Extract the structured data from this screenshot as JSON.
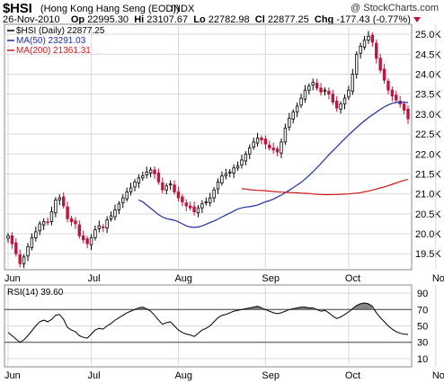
{
  "header": {
    "symbol": "$HSI",
    "name": "(Hong Kong Hang Seng (EOD))",
    "exchange": "INDX",
    "watermark": "@ StockCharts.com",
    "date": "26-Nov-2010",
    "op_label": "Op",
    "op": "22995.30",
    "hi_label": "Hi",
    "hi": "23107.67",
    "lo_label": "Lo",
    "lo": "22782.98",
    "cl_label": "Cl",
    "cl": "22877.25",
    "chg_label": "Chg",
    "chg": "-177.43 (-0.77%)"
  },
  "colors": {
    "up": "#000000",
    "down": "#c0143c",
    "ma50": "#1f2fa0",
    "ma200": "#d01818",
    "grid": "#d9d9d9",
    "rsi_fill": "#666666"
  },
  "chart_data": [
    {
      "type": "candlestick",
      "legend": [
        {
          "label": "$HSI (Daily) 22877.25",
          "color": "#000000"
        },
        {
          "label": "MA(50) 23291.03",
          "color": "#1f2fa0"
        },
        {
          "label": "MA(200) 21361.31",
          "color": "#d01818"
        }
      ],
      "legend_placement": "top-left",
      "x_labels": [
        "Jun",
        "Jul",
        "Aug",
        "Sep",
        "Oct",
        "Nov"
      ],
      "x_label_positions": [
        0,
        21,
        43,
        65,
        86,
        108
      ],
      "y_ticks": [
        19500,
        20000,
        20500,
        21000,
        21500,
        22000,
        22500,
        23000,
        23500,
        24000,
        24500,
        25000
      ],
      "y_tick_labels": [
        "19.5K",
        "20.0K",
        "20.5K",
        "21.0K",
        "21.5K",
        "22.0K",
        "22.5K",
        "23.0K",
        "23.5K",
        "24.0K",
        "24.5K",
        "25.0K"
      ],
      "ylim": [
        19100,
        25250
      ],
      "grid": true,
      "close": [
        19950,
        19750,
        19500,
        19250,
        19420,
        19680,
        19900,
        20050,
        20250,
        20300,
        20280,
        20550,
        20850,
        20900,
        20700,
        20380,
        20300,
        20250,
        19950,
        19850,
        19750,
        19900,
        20100,
        20200,
        20150,
        20350,
        20450,
        20600,
        20750,
        20900,
        21050,
        21150,
        21300,
        21400,
        21450,
        21550,
        21600,
        21500,
        21300,
        21100,
        21200,
        21250,
        21050,
        20900,
        20800,
        20700,
        20650,
        20550,
        20650,
        20750,
        20800,
        20900,
        21100,
        21300,
        21450,
        21500,
        21550,
        21650,
        21700,
        21850,
        22000,
        22150,
        22300,
        22400,
        22350,
        22250,
        22150,
        22100,
        22050,
        22300,
        22650,
        22900,
        23050,
        23200,
        23400,
        23600,
        23700,
        23800,
        23650,
        23550,
        23600,
        23500,
        23300,
        23150,
        23250,
        23400,
        23600,
        24000,
        24500,
        24700,
        24850,
        24950,
        24800,
        24400,
        24100,
        23850,
        23600,
        23450,
        23350,
        23250,
        23100,
        22880
      ],
      "series": [
        {
          "name": "MA(50)",
          "values": [
            20850,
            20800,
            20720,
            20640,
            20560,
            20480,
            20420,
            20380,
            20360,
            20340,
            20300,
            20250,
            20200,
            20170,
            20160,
            20170,
            20200,
            20240,
            20280,
            20320,
            20370,
            20420,
            20470,
            20520,
            20570,
            20620,
            20650,
            20670,
            20680,
            20700,
            20720,
            20760,
            20800,
            20830,
            20870,
            20920,
            20970,
            21030,
            21090,
            21160,
            21220,
            21290,
            21370,
            21460,
            21560,
            21660,
            21760,
            21870,
            21980,
            22080,
            22180,
            22280,
            22380,
            22480,
            22570,
            22660,
            22750,
            22830,
            22910,
            22980,
            23050,
            23120,
            23180,
            23230,
            23270,
            23290,
            23300,
            23295,
            23291
          ]
        },
        {
          "name": "MA(200)",
          "values": [
            21130,
            21120,
            21105,
            21095,
            21090,
            21085,
            21080,
            21070,
            21060,
            21050,
            21045,
            21040,
            21035,
            21030,
            21025,
            21020,
            21015,
            21010,
            21000,
            20990,
            20985,
            20980,
            20980,
            20985,
            20985,
            20990,
            20995,
            21000,
            21010,
            21020,
            21030,
            21050,
            21070,
            21095,
            21120,
            21150,
            21175,
            21205,
            21240,
            21275,
            21310,
            21340,
            21361
          ]
        }
      ]
    },
    {
      "type": "line",
      "label": "RSI(14) 39.60",
      "y_ticks": [
        10,
        30,
        50,
        70,
        90
      ],
      "ylim": [
        0,
        100
      ],
      "reference_lines": [
        30,
        70
      ],
      "values": [
        42,
        38,
        34,
        30,
        33,
        38,
        44,
        50,
        55,
        57,
        55,
        58,
        63,
        64,
        58,
        48,
        45,
        43,
        38,
        36,
        35,
        40,
        45,
        47,
        46,
        50,
        53,
        57,
        60,
        63,
        66,
        68,
        70,
        72,
        73,
        71,
        68,
        63,
        57,
        52,
        54,
        55,
        50,
        45,
        42,
        40,
        39,
        37,
        41,
        45,
        47,
        50,
        55,
        60,
        63,
        64,
        66,
        68,
        69,
        70,
        71,
        72,
        73,
        74,
        72,
        70,
        68,
        66,
        65,
        66,
        68,
        70,
        71,
        72,
        73,
        73,
        72,
        72,
        70,
        68,
        69,
        66,
        62,
        59,
        61,
        64,
        67,
        71,
        75,
        77,
        78,
        77,
        74,
        66,
        60,
        55,
        50,
        46,
        43,
        41,
        40,
        39.6
      ],
      "x_labels": [
        "Jun",
        "Jul",
        "Aug",
        "Sep",
        "Oct",
        "Nov"
      ],
      "x_label_positions": [
        0,
        21,
        43,
        65,
        86,
        108
      ]
    }
  ]
}
